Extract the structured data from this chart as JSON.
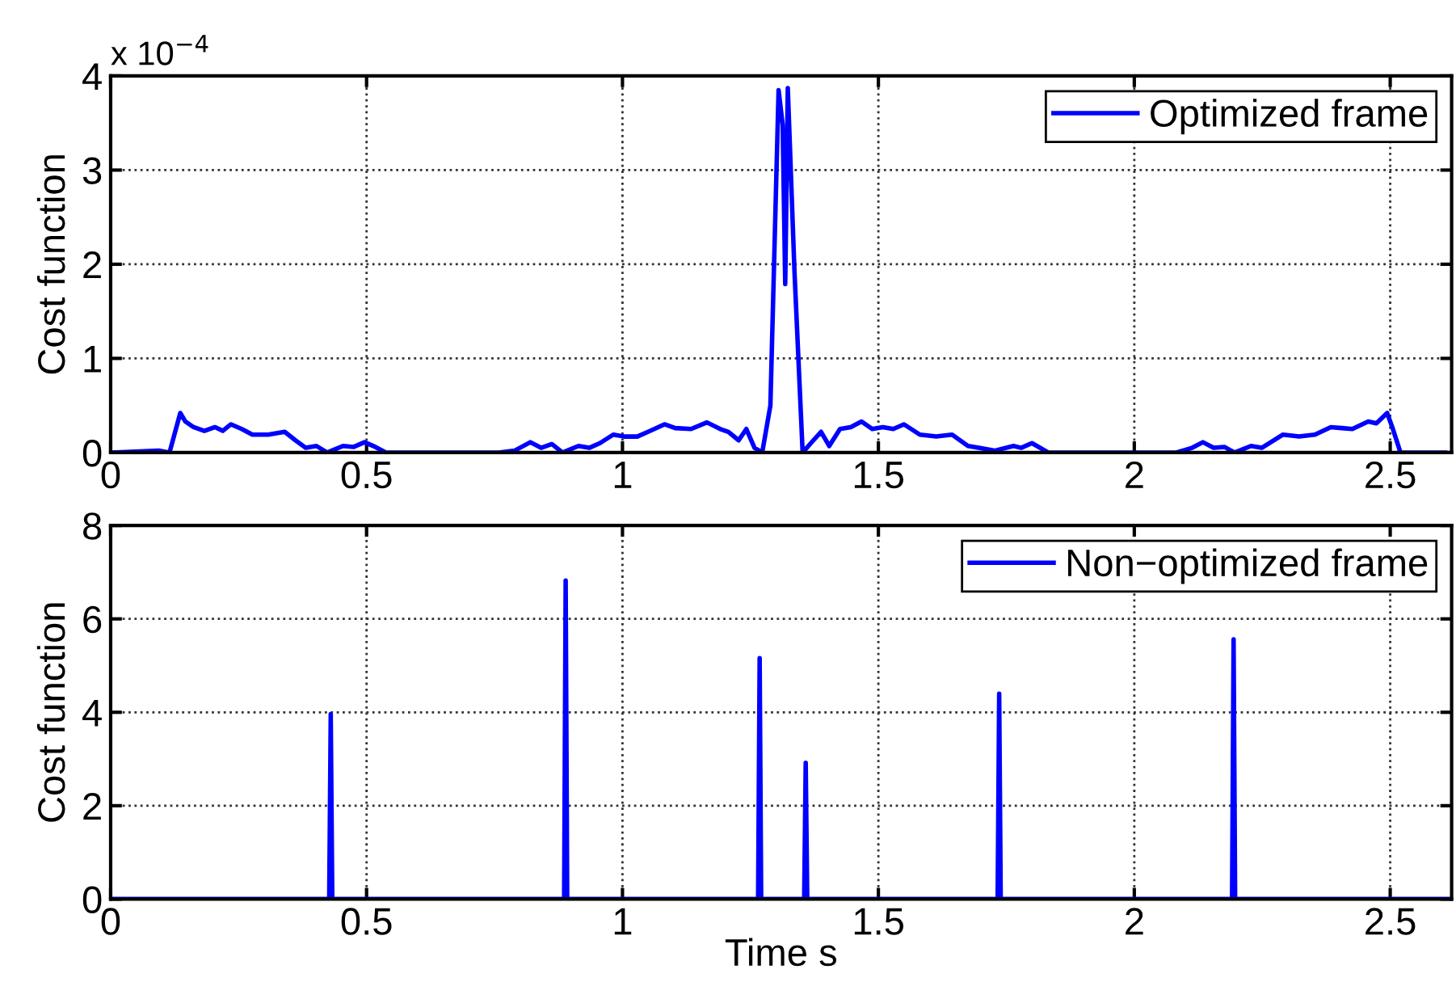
{
  "chart_data": [
    {
      "type": "line",
      "ylabel": "Cost function",
      "annotations": [
        "x 10$^{−4}$"
      ],
      "xlim": [
        0,
        2.62
      ],
      "xticks": [
        0,
        0.5,
        1,
        1.5,
        2,
        2.5
      ],
      "ylim": [
        0,
        4
      ],
      "yticks": [
        0,
        1,
        2,
        3,
        4
      ],
      "grid": true,
      "legend": "top right",
      "line_style": "solid",
      "series": [
        {
          "name": "Optimized frame",
          "color": "#0000ff",
          "x": [
            0,
            0.094,
            0.115,
            0.136,
            0.146,
            0.162,
            0.183,
            0.204,
            0.219,
            0.235,
            0.256,
            0.277,
            0.308,
            0.34,
            0.361,
            0.381,
            0.402,
            0.423,
            0.454,
            0.475,
            0.496,
            0.517,
            0.538,
            0.758,
            0.789,
            0.82,
            0.841,
            0.862,
            0.883,
            0.914,
            0.935,
            0.956,
            0.982,
            1.003,
            1.029,
            1.05,
            1.082,
            1.103,
            1.134,
            1.165,
            1.191,
            1.207,
            1.227,
            1.242,
            1.258,
            1.273,
            1.289,
            1.305,
            1.313,
            1.318,
            1.323,
            1.336,
            1.352,
            1.373,
            1.388,
            1.404,
            1.425,
            1.446,
            1.467,
            1.488,
            1.509,
            1.529,
            1.55,
            1.581,
            1.613,
            1.644,
            1.675,
            1.696,
            1.727,
            1.764,
            1.779,
            1.8,
            1.832,
            2.082,
            2.113,
            2.134,
            2.155,
            2.176,
            2.196,
            2.228,
            2.249,
            2.29,
            2.322,
            2.353,
            2.384,
            2.405,
            2.426,
            2.457,
            2.473,
            2.494,
            2.504,
            2.52,
            2.607
          ],
          "values": [
            0,
            0.02,
            0,
            0.42,
            0.33,
            0.27,
            0.23,
            0.27,
            0.23,
            0.3,
            0.25,
            0.19,
            0.19,
            0.22,
            0.13,
            0.05,
            0.07,
            0,
            0.07,
            0.06,
            0.11,
            0.06,
            0,
            0,
            0.02,
            0.11,
            0.05,
            0.09,
            0,
            0.07,
            0.05,
            0.1,
            0.19,
            0.17,
            0.17,
            0.22,
            0.3,
            0.26,
            0.25,
            0.32,
            0.25,
            0.22,
            0.13,
            0.25,
            0.05,
            0,
            0.5,
            3.85,
            3.48,
            1.79,
            3.87,
            1.93,
            0,
            0.13,
            0.22,
            0.07,
            0.25,
            0.27,
            0.33,
            0.25,
            0.27,
            0.25,
            0.3,
            0.19,
            0.17,
            0.19,
            0.07,
            0.05,
            0.02,
            0.07,
            0.05,
            0.1,
            0,
            0,
            0.05,
            0.11,
            0.05,
            0.06,
            0,
            0.07,
            0.05,
            0.19,
            0.17,
            0.19,
            0.27,
            0.26,
            0.25,
            0.33,
            0.31,
            0.42,
            0.27,
            0,
            0
          ]
        }
      ]
    },
    {
      "type": "line",
      "xlabel": "Time s",
      "ylabel": "Cost function",
      "xlim": [
        0,
        2.62
      ],
      "xticks": [
        0,
        0.5,
        1,
        1.5,
        2,
        2.5
      ],
      "ylim": [
        0,
        8
      ],
      "yticks": [
        0,
        2,
        4,
        6,
        8
      ],
      "grid": true,
      "legend": "top right",
      "line_style": "solid",
      "series": [
        {
          "name": "Non−optimized frame",
          "color": "#0000ff",
          "x": [
            0,
            0.427,
            0.43,
            0.433,
            0.886,
            0.889,
            0.892,
            1.265,
            1.268,
            1.271,
            1.355,
            1.358,
            1.361,
            1.733,
            1.736,
            1.739,
            2.191,
            2.194,
            2.197,
            2.62
          ],
          "values": [
            0,
            0,
            3.96,
            0,
            0,
            6.82,
            0,
            0,
            5.16,
            0,
            0,
            2.92,
            0,
            0,
            4.4,
            0,
            0,
            5.56,
            0,
            0
          ]
        }
      ]
    }
  ]
}
